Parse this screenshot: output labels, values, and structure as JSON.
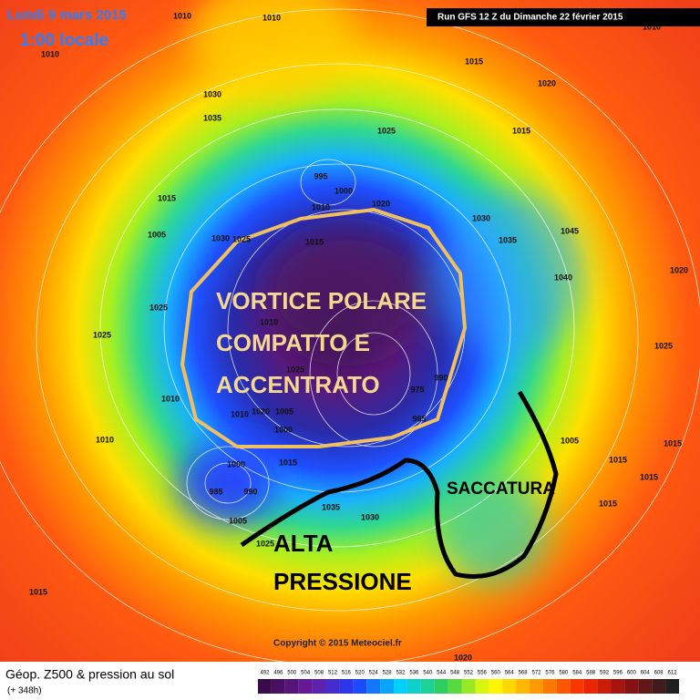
{
  "header": {
    "date": "Lundi 9 mars 2015",
    "time": "1:00 locale",
    "run": "Run GFS 12 Z du Dimanche 22 février 2015"
  },
  "annotations": {
    "vortex": [
      "VORTICE POLARE",
      "COMPATTO E",
      "ACCENTRATO"
    ],
    "trough": "SACCATURA",
    "high": [
      "ALTA",
      "PRESSIONE"
    ]
  },
  "isobar_labels": [
    1010,
    1010,
    1010,
    1010,
    1015,
    1020,
    1030,
    1035,
    1025,
    1015,
    995,
    1000,
    1015,
    1020,
    1010,
    1030,
    1005,
    1030,
    1025,
    1015,
    1035,
    1045,
    1040,
    1025,
    1010,
    1025,
    1025,
    1010,
    1020,
    1005,
    1010,
    1000,
    985,
    975,
    990,
    1010,
    1015,
    1000,
    985,
    990,
    1005,
    1035,
    1030,
    1025,
    1015,
    1020,
    1015,
    1020,
    1025,
    1005,
    1015,
    1015,
    1015
  ],
  "copyright": "Copyright © 2015 Meteociel.fr",
  "footer": {
    "title": "Géop. Z500 & pression au sol",
    "lead": "(+ 348h)"
  },
  "colorbar": {
    "labels": [
      492,
      496,
      500,
      504,
      508,
      512,
      516,
      520,
      524,
      528,
      532,
      536,
      540,
      544,
      548,
      552,
      556,
      560,
      564,
      568,
      572,
      576,
      580,
      584,
      588,
      592,
      596,
      600,
      604,
      608,
      612
    ]
  }
}
